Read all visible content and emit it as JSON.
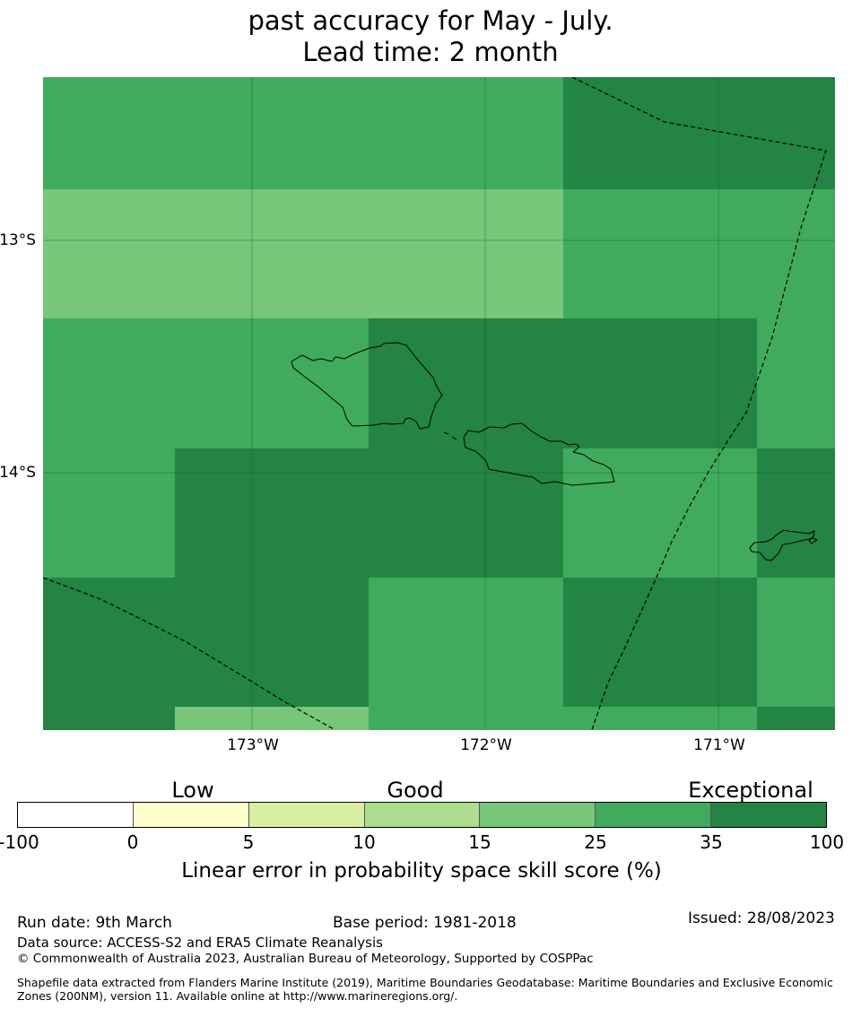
{
  "title": {
    "line1": "past accuracy for May - July.",
    "line2": "Lead time: 2 month"
  },
  "map": {
    "lat_labels": [
      "13°S",
      "14°S"
    ],
    "lon_labels": [
      "173°W",
      "172°W",
      "171°W"
    ],
    "colors": {
      "c15_25": "#78c679",
      "c25_35": "#41ab5d",
      "c35_100": "#238443"
    },
    "grid_classes": [
      [
        "25-35",
        "25-35",
        "25-35",
        "35-100",
        "35-100"
      ],
      [
        "15-25",
        "15-25",
        "15-25",
        "25-35",
        "25-35"
      ],
      [
        "25-35",
        "25-35",
        "35-100",
        "35-100",
        "25-35"
      ],
      [
        "25-35",
        "35-100",
        "35-100",
        "25-35",
        "35-100"
      ],
      [
        "35-100",
        "35-100",
        "25-35",
        "35-100",
        "25-35"
      ],
      [
        "35-100",
        "15-25",
        "25-35",
        "25-35",
        "35-100"
      ]
    ]
  },
  "legend": {
    "categories": [
      "Low",
      "Good",
      "Exceptional"
    ],
    "ticks": [
      "-100",
      "0",
      "5",
      "10",
      "15",
      "25",
      "35",
      "100"
    ],
    "colors": [
      "#ffffff",
      "#ffffcc",
      "#d9f0a3",
      "#addd8e",
      "#78c679",
      "#41ab5d",
      "#238443"
    ],
    "axis_label": "Linear error in probability space skill score (%)"
  },
  "footer": {
    "run_date": "Run date: 9th March",
    "base_period": "Base period: 1981-2018",
    "issued": "Issued: 28/08/2023",
    "data_source": "Data source: ACCESS-S2 and ERA5 Climate Reanalysis",
    "copyright": "© Commonwealth of Australia 2023, Australian Bureau of Meteorology, Supported by COSPPac",
    "shapefile": "Shapefile data extracted from Flanders Marine Institute (2019), Maritime Boundaries Geodatabase: Maritime Boundaries and Exclusive Economic Zones (200NM), version 11. Available online at http://www.marineregions.org/."
  }
}
